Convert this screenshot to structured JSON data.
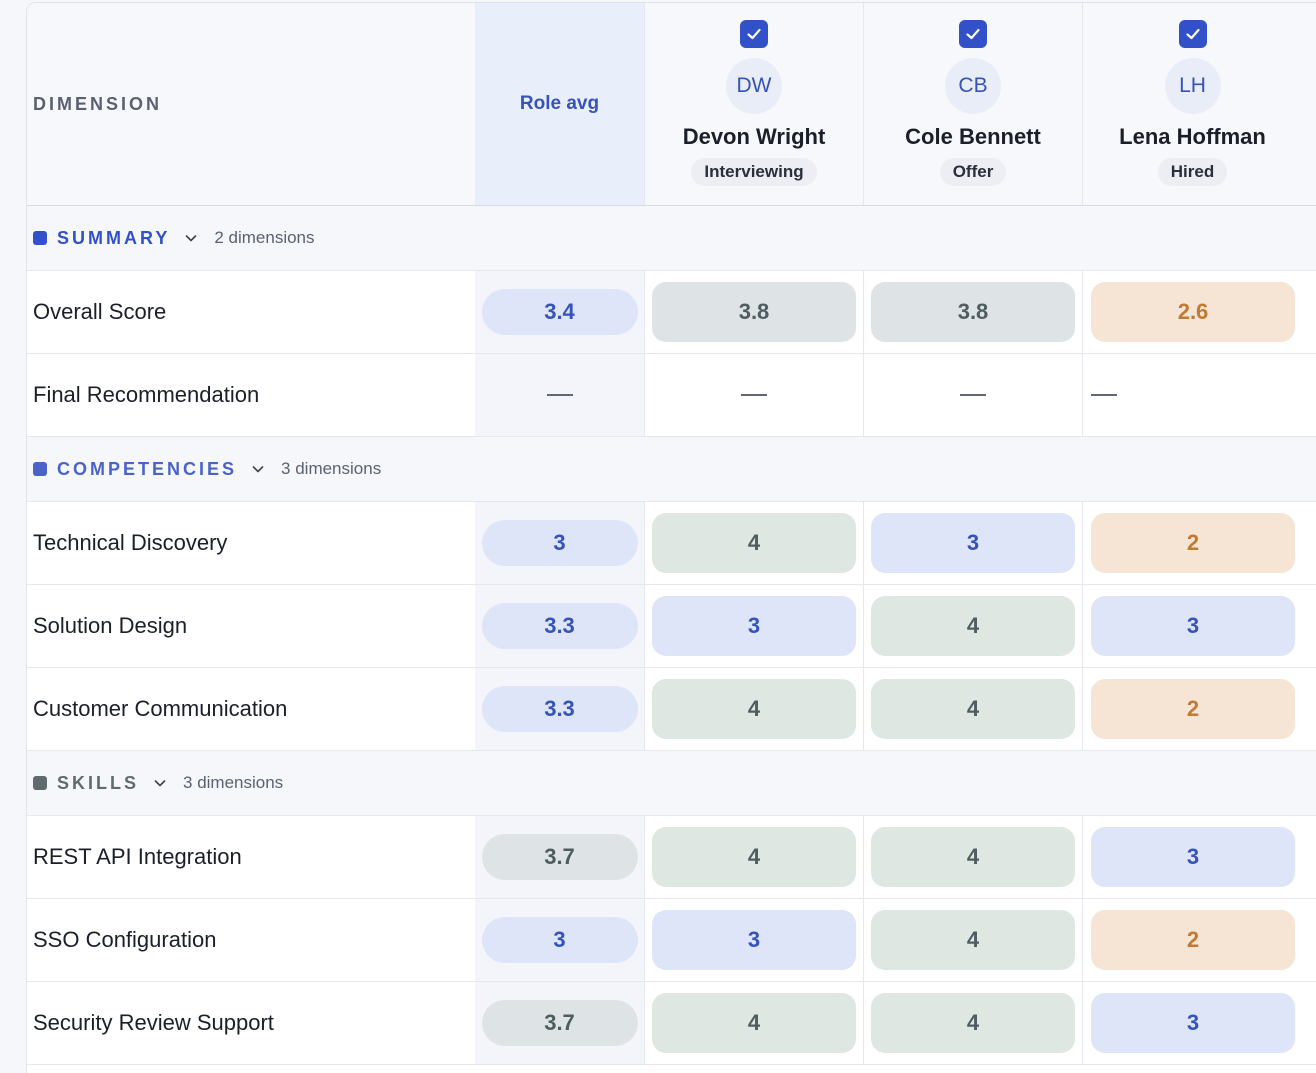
{
  "header": {
    "dimension_label": "DIMENSION",
    "role_avg_label": "Role avg"
  },
  "candidates": [
    {
      "initials": "DW",
      "name": "Devon Wright",
      "status": "Interviewing",
      "selected": true
    },
    {
      "initials": "CB",
      "name": "Cole Bennett",
      "status": "Offer",
      "selected": true
    },
    {
      "initials": "LH",
      "name": "Lena Hoffman",
      "status": "Hired",
      "selected": true
    }
  ],
  "sections": [
    {
      "name": "SUMMARY",
      "count_label": "2 dimensions",
      "color": "#3250c7",
      "rows": [
        {
          "label": "Overall Score",
          "avg": "3.4",
          "avg_tone": "blue",
          "scores": [
            {
              "v": "3.8",
              "tone": "gray"
            },
            {
              "v": "3.8",
              "tone": "gray"
            },
            {
              "v": "2.6",
              "tone": "peach"
            }
          ]
        },
        {
          "label": "Final Recommendation",
          "avg": "—",
          "avg_tone": "none",
          "scores": [
            {
              "v": "—",
              "tone": "none"
            },
            {
              "v": "—",
              "tone": "none"
            },
            {
              "v": "—",
              "tone": "none"
            }
          ]
        }
      ]
    },
    {
      "name": "COMPETENCIES",
      "count_label": "3 dimensions",
      "color": "#4b63c9",
      "rows": [
        {
          "label": "Technical Discovery",
          "avg": "3",
          "avg_tone": "blue",
          "scores": [
            {
              "v": "4",
              "tone": "sage"
            },
            {
              "v": "3",
              "tone": "blue"
            },
            {
              "v": "2",
              "tone": "peach"
            }
          ]
        },
        {
          "label": "Solution Design",
          "avg": "3.3",
          "avg_tone": "blue",
          "scores": [
            {
              "v": "3",
              "tone": "blue"
            },
            {
              "v": "4",
              "tone": "sage"
            },
            {
              "v": "3",
              "tone": "blue"
            }
          ]
        },
        {
          "label": "Customer Communication",
          "avg": "3.3",
          "avg_tone": "blue",
          "scores": [
            {
              "v": "4",
              "tone": "sage"
            },
            {
              "v": "4",
              "tone": "sage"
            },
            {
              "v": "2",
              "tone": "peach"
            }
          ]
        }
      ]
    },
    {
      "name": "SKILLS",
      "count_label": "3 dimensions",
      "color": "#5f6b6e",
      "rows": [
        {
          "label": "REST API Integration",
          "avg": "3.7",
          "avg_tone": "gray",
          "scores": [
            {
              "v": "4",
              "tone": "sage"
            },
            {
              "v": "4",
              "tone": "sage"
            },
            {
              "v": "3",
              "tone": "blue"
            }
          ]
        },
        {
          "label": "SSO Configuration",
          "avg": "3",
          "avg_tone": "blue",
          "scores": [
            {
              "v": "3",
              "tone": "blue"
            },
            {
              "v": "4",
              "tone": "sage"
            },
            {
              "v": "2",
              "tone": "peach"
            }
          ]
        },
        {
          "label": "Security Review Support",
          "avg": "3.7",
          "avg_tone": "gray",
          "scores": [
            {
              "v": "4",
              "tone": "sage"
            },
            {
              "v": "4",
              "tone": "sage"
            },
            {
              "v": "3",
              "tone": "blue"
            }
          ]
        }
      ]
    }
  ],
  "colors": {
    "accent": "#3250c7",
    "score_blue": "#dfe5f8",
    "score_sage": "#dfe7e2",
    "score_gray": "#dee4e5",
    "score_peach": "#f6e5d4"
  },
  "icons": {
    "checkbox": "checkbox-checked-icon",
    "chevron": "chevron-down-icon"
  }
}
